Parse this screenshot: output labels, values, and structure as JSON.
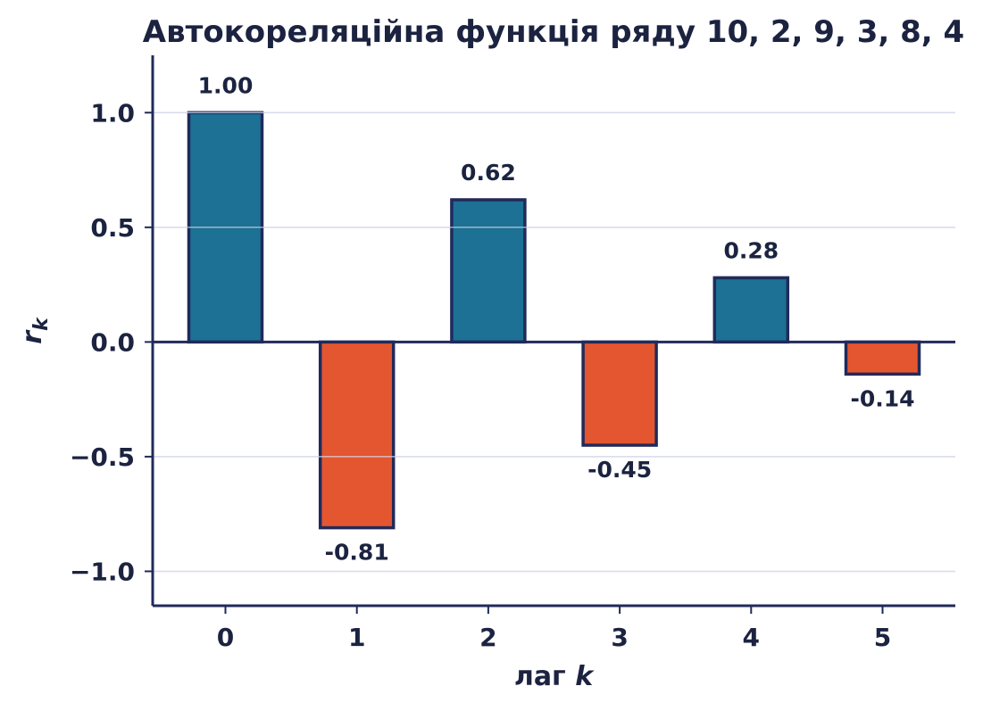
{
  "chart_data": {
    "type": "bar",
    "title": "Автокореляційна функція ряду 10, 2, 9, 3, 8, 4",
    "xlabel_text": "лаг ",
    "xlabel_symbol": "k",
    "ylabel_symbol": "r",
    "ylabel_subscript": "k",
    "categories": [
      "0",
      "1",
      "2",
      "3",
      "4",
      "5"
    ],
    "values": [
      1.0,
      -0.81,
      0.62,
      -0.45,
      0.28,
      -0.14
    ],
    "value_labels": [
      "1.00",
      "-0.81",
      "0.62",
      "-0.45",
      "0.28",
      "-0.14"
    ],
    "ylim": [
      -1.15,
      1.25
    ],
    "yticks": [
      1.0,
      0.5,
      0.0,
      -0.5,
      -1.0
    ],
    "ytick_labels": [
      "1.0",
      "0.5",
      "0.0",
      "−0.5",
      "−1.0"
    ],
    "grid": true,
    "colors": {
      "positive": "#1c7194",
      "negative": "#e35630",
      "outline": "#212a5a",
      "text": "#1b2340",
      "grid": "#d7dbec"
    }
  }
}
